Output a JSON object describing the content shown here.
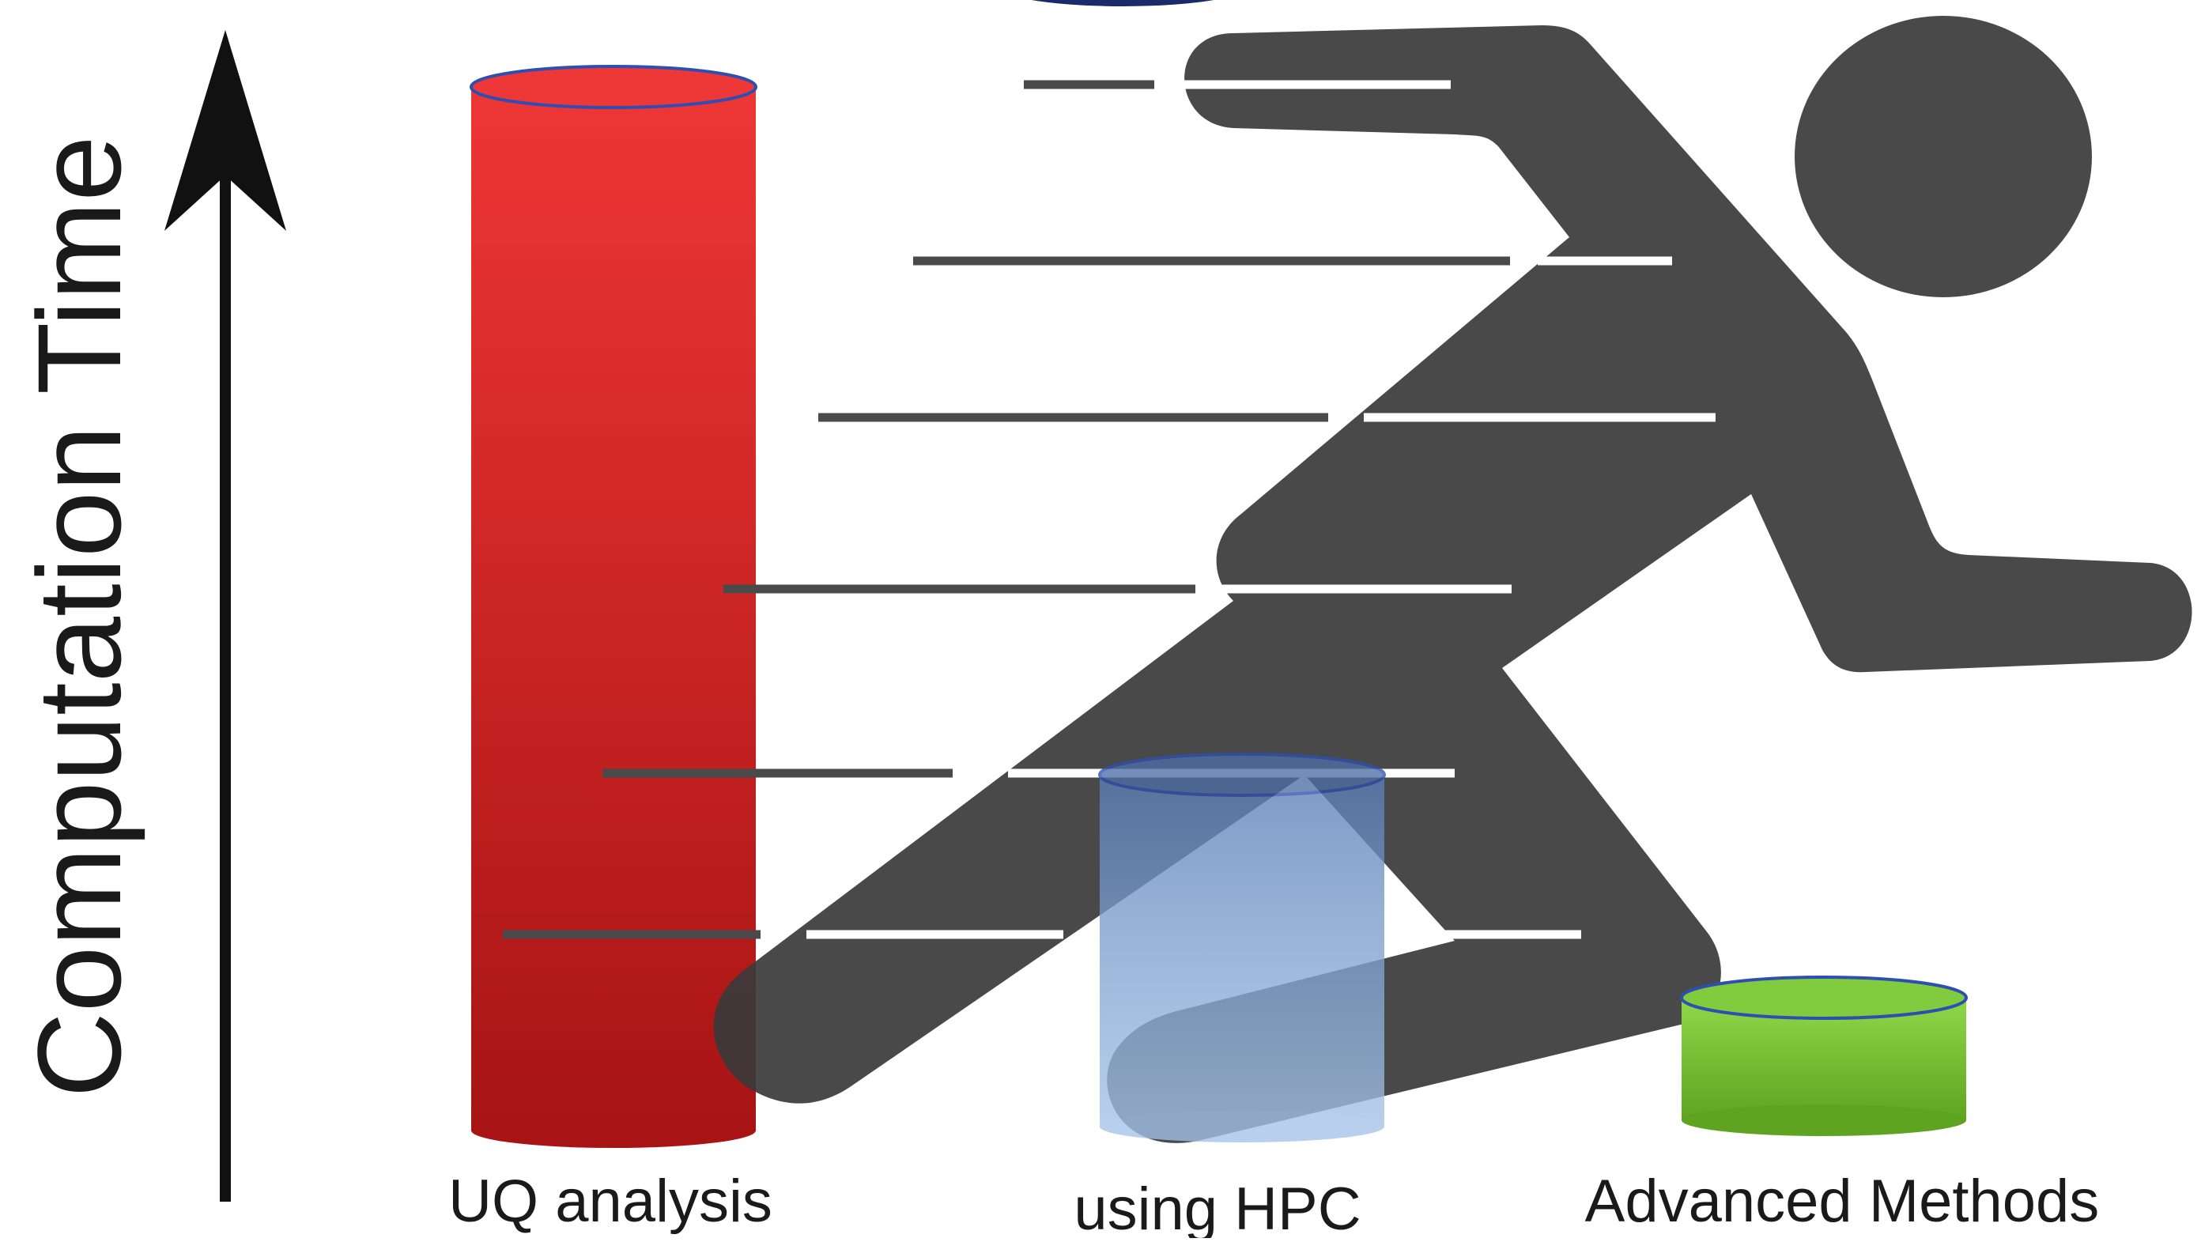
{
  "axis": {
    "label": "Computation Time"
  },
  "bars": [
    {
      "label": "UQ analysis",
      "relative_height": 1.0,
      "color_top": "#ee3636",
      "color_bottom": "#a81414",
      "color_rim": "#2f4fb0"
    },
    {
      "label": "using HPC",
      "relative_height": 0.34,
      "color_top": "#6588be",
      "color_bottom": "#a0bde4",
      "color_rim": "#2f4fb0"
    },
    {
      "label": "Advanced Methods",
      "relative_height": 0.12,
      "color_top": "#8ad444",
      "color_bottom": "#5ea420",
      "color_rim": "#2f4fb0"
    }
  ],
  "figure": {
    "icon": "running-person-icon",
    "color": "#3a3a3a",
    "speed_line_color": "#4a4a4a",
    "speed_line_highlight": "#ffffff"
  },
  "colors": {
    "axis": "#111111",
    "text": "#1a1a1a",
    "ellipse_top": "#1a2a6a"
  }
}
